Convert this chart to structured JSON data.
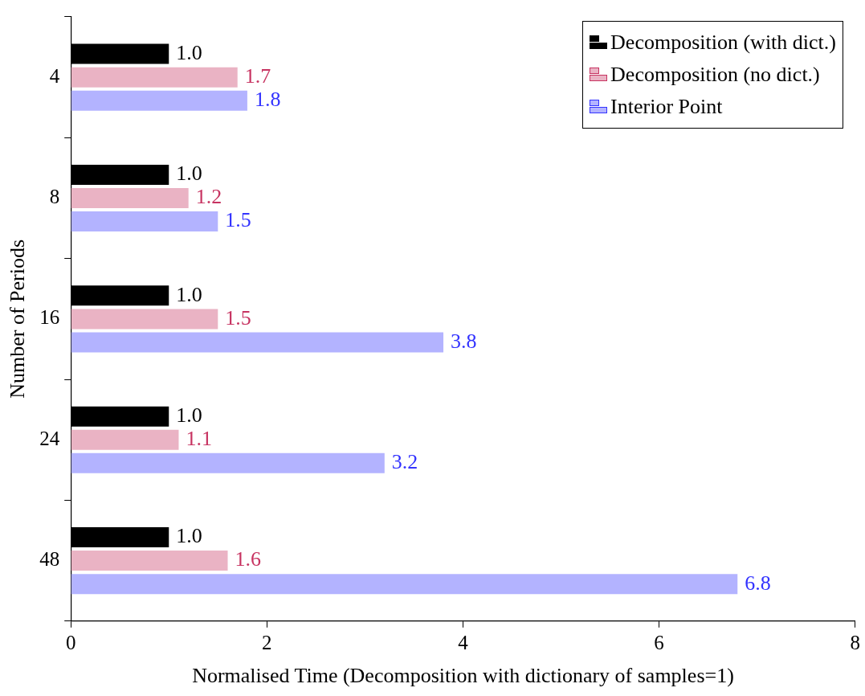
{
  "chart_data": {
    "type": "bar",
    "orientation": "horizontal",
    "xlabel": "Normalised Time (Decomposition with dictionary of samples=1)",
    "ylabel": "Number of Periods",
    "categories": [
      "4",
      "8",
      "16",
      "24",
      "48"
    ],
    "series": [
      {
        "name": "Decomposition (with dict.)",
        "color": "#000000",
        "values": [
          1.0,
          1.0,
          1.0,
          1.0,
          1.0
        ],
        "value_labels": [
          "1.0",
          "1.0",
          "1.0",
          "1.0",
          "1.0"
        ]
      },
      {
        "name": "Decomposition (no dict.)",
        "color": "#eab3c4",
        "values": [
          1.7,
          1.2,
          1.5,
          1.1,
          1.6
        ],
        "value_labels": [
          "1.7",
          "1.2",
          "1.5",
          "1.1",
          "1.6"
        ]
      },
      {
        "name": "Interior Point",
        "color": "#b3b3ff",
        "values": [
          1.8,
          1.5,
          3.8,
          3.2,
          6.8
        ],
        "value_labels": [
          "1.8",
          "1.5",
          "3.8",
          "3.2",
          "6.8"
        ]
      }
    ],
    "xlim": [
      0,
      8
    ],
    "xticks": [
      0,
      2,
      4,
      6,
      8
    ],
    "grid": false,
    "legend": "top right"
  }
}
